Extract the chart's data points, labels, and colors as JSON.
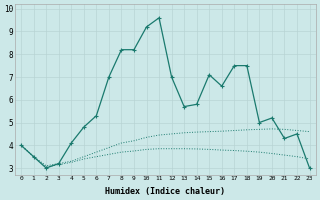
{
  "xlabel": "Humidex (Indice chaleur)",
  "background_color": "#cce8e8",
  "grid_color": "#b8d4d4",
  "line_color": "#1a7a6e",
  "x_values": [
    0,
    1,
    2,
    3,
    4,
    5,
    6,
    7,
    8,
    9,
    10,
    11,
    12,
    13,
    14,
    15,
    16,
    17,
    18,
    19,
    20,
    21,
    22,
    23
  ],
  "line_main": [
    4.0,
    3.5,
    3.0,
    3.2,
    4.1,
    4.8,
    5.3,
    7.0,
    8.2,
    8.2,
    9.2,
    9.6,
    7.0,
    5.7,
    5.8,
    7.1,
    6.6,
    7.5,
    7.5,
    5.0,
    5.2,
    4.3,
    4.5,
    3.0
  ],
  "line_lower_upper": [
    4.0,
    3.5,
    3.1,
    3.2,
    3.3,
    3.5,
    3.7,
    3.9,
    4.1,
    4.2,
    4.35,
    4.45,
    4.5,
    4.55,
    4.58,
    4.6,
    4.62,
    4.65,
    4.68,
    4.7,
    4.72,
    4.7,
    4.65,
    4.6
  ],
  "line_lower_bottom": [
    4.0,
    3.5,
    3.05,
    3.15,
    3.25,
    3.4,
    3.5,
    3.6,
    3.7,
    3.75,
    3.82,
    3.85,
    3.85,
    3.85,
    3.84,
    3.82,
    3.79,
    3.77,
    3.74,
    3.7,
    3.64,
    3.57,
    3.5,
    3.4
  ],
  "xlim": [
    -0.5,
    23.5
  ],
  "ylim": [
    2.7,
    10.2
  ],
  "yticks": [
    3,
    4,
    5,
    6,
    7,
    8,
    9,
    10
  ],
  "xticks": [
    0,
    1,
    2,
    3,
    4,
    5,
    6,
    7,
    8,
    9,
    10,
    11,
    12,
    13,
    14,
    15,
    16,
    17,
    18,
    19,
    20,
    21,
    22,
    23
  ]
}
